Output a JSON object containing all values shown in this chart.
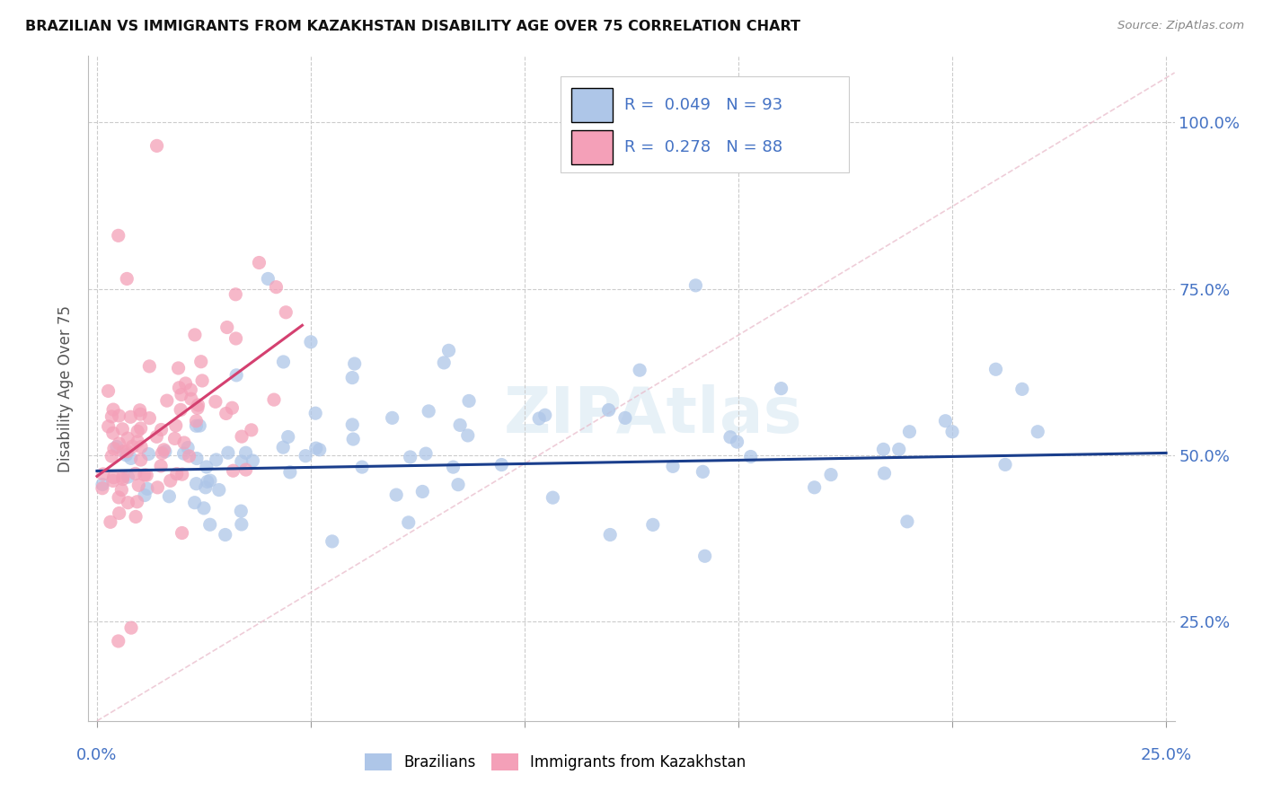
{
  "title": "BRAZILIAN VS IMMIGRANTS FROM KAZAKHSTAN DISABILITY AGE OVER 75 CORRELATION CHART",
  "source": "Source: ZipAtlas.com",
  "ylabel": "Disability Age Over 75",
  "blue_color": "#aec6e8",
  "blue_line_color": "#1a3e8c",
  "pink_color": "#f4a0b8",
  "pink_line_color": "#d44070",
  "diag_color": "#e8b8c8",
  "legend_blue_R": "0.049",
  "legend_blue_N": "93",
  "legend_pink_R": "0.278",
  "legend_pink_N": "88",
  "watermark": "ZIPAtlas",
  "ytick_vals": [
    0.25,
    0.5,
    0.75,
    1.0
  ],
  "ytick_labels": [
    "25.0%",
    "50.0%",
    "75.0%",
    "100.0%"
  ],
  "xlim": [
    -0.002,
    0.252
  ],
  "ylim": [
    0.1,
    1.1
  ],
  "blue_line_x": [
    0.0,
    0.25
  ],
  "blue_line_y": [
    0.476,
    0.503
  ],
  "pink_line_x": [
    0.0,
    0.048
  ],
  "pink_line_y": [
    0.468,
    0.695
  ]
}
